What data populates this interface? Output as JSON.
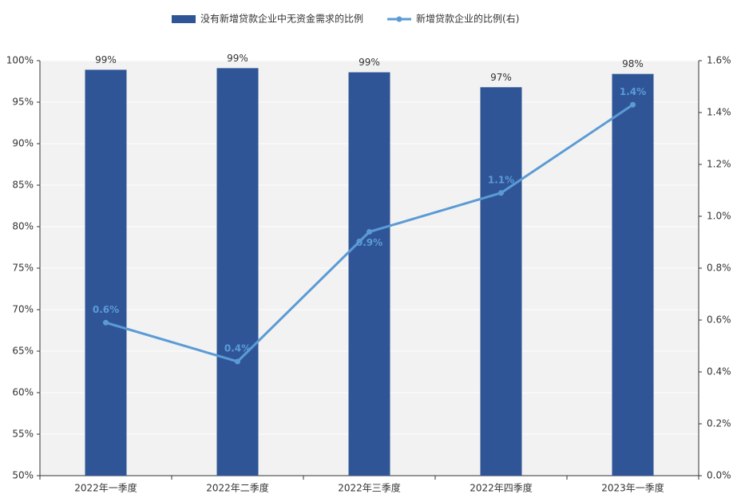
{
  "chart_data": {
    "type": "bar-line",
    "categories": [
      "2022年一季度",
      "2022年二季度",
      "2022年三季度",
      "2022年四季度",
      "2023年一季度"
    ],
    "series": [
      {
        "name": "没有新增贷款企业中无资金需求的比例",
        "type": "bar",
        "color": "#2f5597",
        "values": [
          98.9,
          99.1,
          98.6,
          96.8,
          98.4
        ],
        "value_labels": [
          "99%",
          "99%",
          "99%",
          "97%",
          "98%"
        ]
      },
      {
        "name": "新增贷款企业的比例(右)",
        "type": "line",
        "axis": "y2",
        "color": "#5b9bd5",
        "values": [
          0.59,
          0.44,
          0.94,
          1.09,
          1.43
        ],
        "value_labels": [
          "0.6%",
          "0.4%",
          "0.9%",
          "1.1%",
          "1.4%"
        ]
      }
    ],
    "ylim": [
      50,
      100
    ],
    "yticks": [
      {
        "value": 50,
        "label": "50%"
      },
      {
        "value": 55,
        "label": "55%"
      },
      {
        "value": 60,
        "label": "60%"
      },
      {
        "value": 65,
        "label": "65%"
      },
      {
        "value": 70,
        "label": "70%"
      },
      {
        "value": 75,
        "label": "75%"
      },
      {
        "value": 80,
        "label": "80%"
      },
      {
        "value": 85,
        "label": "85%"
      },
      {
        "value": 90,
        "label": "90%"
      },
      {
        "value": 95,
        "label": "95%"
      },
      {
        "value": 100,
        "label": "100%"
      }
    ],
    "y2lim": [
      0,
      1.6
    ],
    "y2ticks": [
      {
        "value": 0,
        "label": "0.0%"
      },
      {
        "value": 0.2,
        "label": "0.2%"
      },
      {
        "value": 0.4,
        "label": "0.4%"
      },
      {
        "value": 0.6,
        "label": "0.6%"
      },
      {
        "value": 0.8,
        "label": "0.8%"
      },
      {
        "value": 1.0,
        "label": "1.0%"
      },
      {
        "value": 1.2,
        "label": "1.2%"
      },
      {
        "value": 1.4,
        "label": "1.4%"
      },
      {
        "value": 1.6,
        "label": "1.6%"
      }
    ],
    "grid": true
  }
}
